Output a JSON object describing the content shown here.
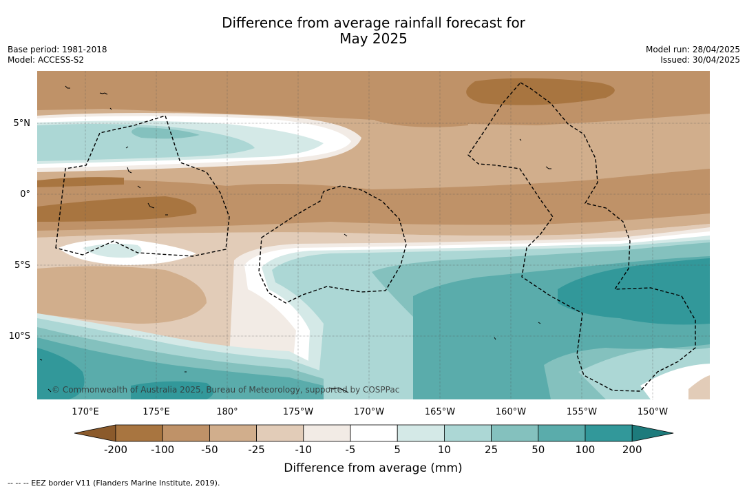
{
  "header": {
    "title_line1": "Difference from average rainfall forecast for",
    "title_line2": "May 2025",
    "base_period": "Base period: 1981-2018",
    "model": "Model: ACCESS-S2",
    "model_run": "Model run: 28/04/2025",
    "issued": "Issued: 30/04/2025"
  },
  "map": {
    "lat_labels": [
      "5°N",
      "0°",
      "5°S",
      "10°S"
    ],
    "lon_labels": [
      "170°E",
      "175°E",
      "180°",
      "175°W",
      "170°W",
      "165°W",
      "160°W",
      "155°W",
      "150°W"
    ],
    "copyright": "© Commonwealth of Australia 2025, Bureau of Meteorology, supported by COSPPac",
    "eez_line_style": "dashed"
  },
  "legend": {
    "title": "Difference from average (mm)",
    "tick_labels": [
      "-200",
      "-100",
      "-50",
      "-25",
      "-10",
      "-5",
      "5",
      "10",
      "25",
      "50",
      "100",
      "200"
    ],
    "colors": [
      "#8b5a2b",
      "#a87540",
      "#bf9268",
      "#d1ae8c",
      "#e2ccb8",
      "#f2ebe5",
      "#ffffff",
      "#d4e9e7",
      "#acd7d5",
      "#84c1be",
      "#5aacab",
      "#32989a",
      "#1d7b7c"
    ]
  },
  "footnote": "--  --  -- EEZ border V11 (Flanders Marine Institute, 2019)."
}
